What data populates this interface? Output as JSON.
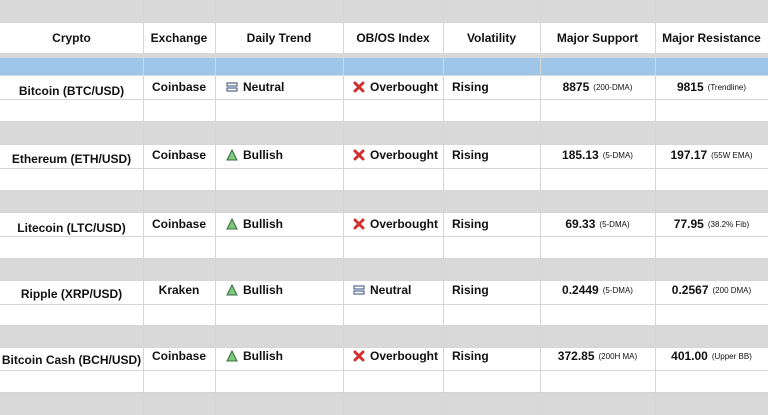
{
  "table": {
    "header": [
      "Crypto",
      "Exchange",
      "Daily Trend",
      "OB/OS Index",
      "Volatility",
      "Major Support",
      "Major Resistance"
    ],
    "rows": [
      {
        "crypto": "Bitcoin (BTC/USD)",
        "exchange": "Coinbase",
        "trend": "Neutral",
        "index": "Overbought",
        "volatility": "Rising",
        "support": "8875",
        "support_note": "(200-DMA)",
        "resistance": "9815",
        "resistance_note": "(Trendline)"
      },
      {
        "crypto": "Ethereum (ETH/USD)",
        "exchange": "Coinbase",
        "trend": "Bullish",
        "index": "Overbought",
        "volatility": "Rising",
        "support": "185.13",
        "support_note": "(5-DMA)",
        "resistance": "197.17",
        "resistance_note": "(55W EMA)"
      },
      {
        "crypto": "Litecoin (LTC/USD)",
        "exchange": "Coinbase",
        "trend": "Bullish",
        "index": "Overbought",
        "volatility": "Rising",
        "support": "69.33",
        "support_note": "(5-DMA)",
        "resistance": "77.95",
        "resistance_note": "(38.2% Fib)"
      },
      {
        "crypto": "Ripple (XRP/USD)",
        "exchange": "Kraken",
        "trend": "Bullish",
        "index": "Neutral",
        "volatility": "Rising",
        "support": "0.2449",
        "support_note": "(5-DMA)",
        "resistance": "0.2567",
        "resistance_note": "(200 DMA)"
      },
      {
        "crypto": "Bitcoin Cash (BCH/USD)",
        "exchange": "Coinbase",
        "trend": "Bullish",
        "index": "Overbought",
        "volatility": "Rising",
        "support": "372.85",
        "support_note": "(200H MA)",
        "resistance": "401.00",
        "resistance_note": "(Upper BB)"
      }
    ]
  }
}
